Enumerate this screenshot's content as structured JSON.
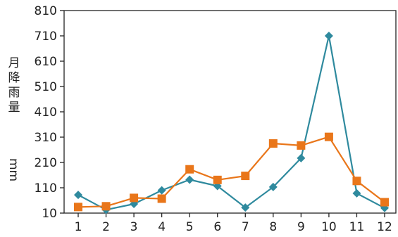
{
  "chart_data": {
    "type": "line",
    "categories": [
      "1",
      "2",
      "3",
      "4",
      "5",
      "6",
      "7",
      "8",
      "9",
      "10",
      "11",
      "12"
    ],
    "ylabel_main": "月降雨量",
    "ylabel_unit": "mm",
    "yticks": [
      10,
      110,
      210,
      310,
      410,
      510,
      610,
      710,
      810
    ],
    "ylim": [
      10,
      810
    ],
    "grid": false,
    "legend": "none",
    "series": [
      {
        "color": "#2f8a9e",
        "marker": "diamond",
        "values": [
          82,
          23,
          46,
          100,
          142,
          117,
          32,
          113,
          227,
          710,
          88,
          30
        ]
      },
      {
        "color": "#e9761a",
        "marker": "square",
        "values": [
          34,
          37,
          70,
          67,
          183,
          141,
          157,
          285,
          277,
          311,
          137,
          53
        ]
      }
    ]
  }
}
